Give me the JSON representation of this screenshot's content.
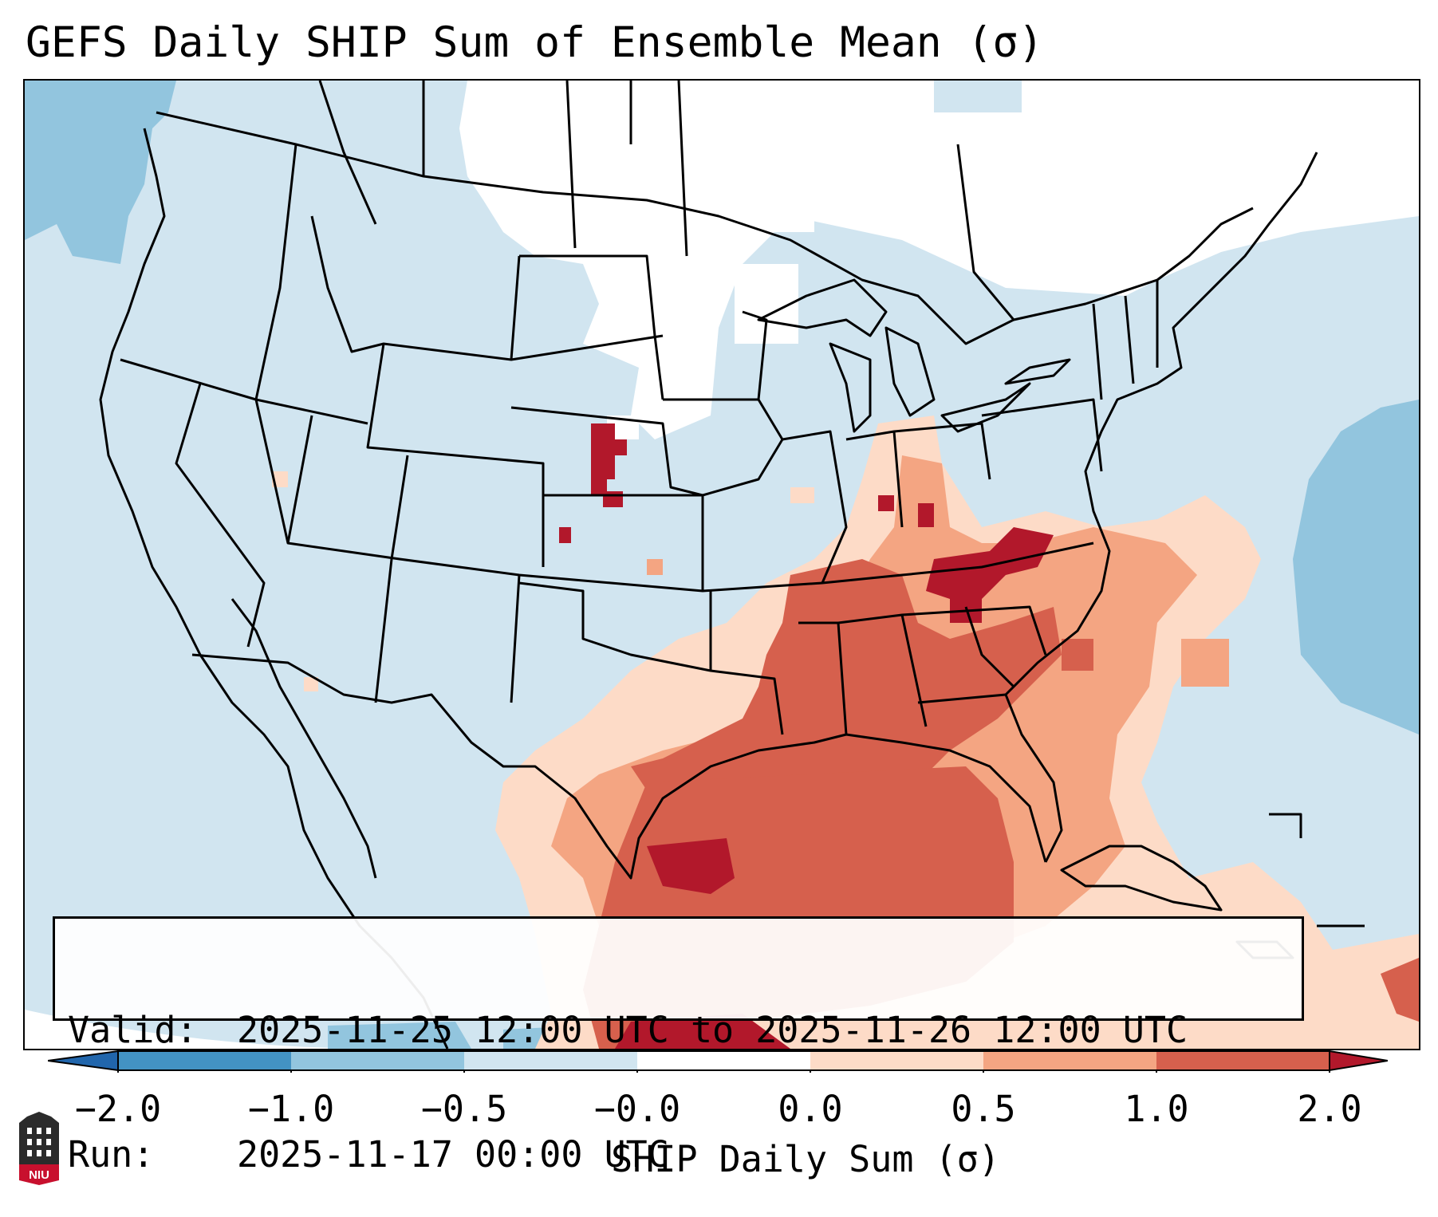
{
  "title": "GEFS Daily SHIP Sum of Ensemble Mean (σ)",
  "info": {
    "valid_label": "Valid:",
    "valid_value": "2025-11-25 12:00 UTC to 2025-11-26 12:00 UTC",
    "run_label": "Run:",
    "run_value": "2025-11-17 00:00 UTC"
  },
  "colorbar": {
    "label": "SHIP Daily Sum (σ)",
    "ticks": [
      "−2.0",
      "−1.0",
      "−0.5",
      "−0.0",
      "0.0",
      "0.5",
      "1.0",
      "2.0"
    ],
    "colors": {
      "below_-2": "#2166ac",
      "-2_to_-1": "#4393c3",
      "-1_to_-0.5": "#92c5de",
      "-0.5_to_0": "#d1e5f0",
      "0_band": "#ffffff",
      "0_to_0.5": "#fddbc7",
      "0.5_to_1": "#f4a582",
      "1_to_2": "#d6604d",
      "above_2": "#b2182b"
    }
  },
  "logo": {
    "text": "NIU"
  }
}
